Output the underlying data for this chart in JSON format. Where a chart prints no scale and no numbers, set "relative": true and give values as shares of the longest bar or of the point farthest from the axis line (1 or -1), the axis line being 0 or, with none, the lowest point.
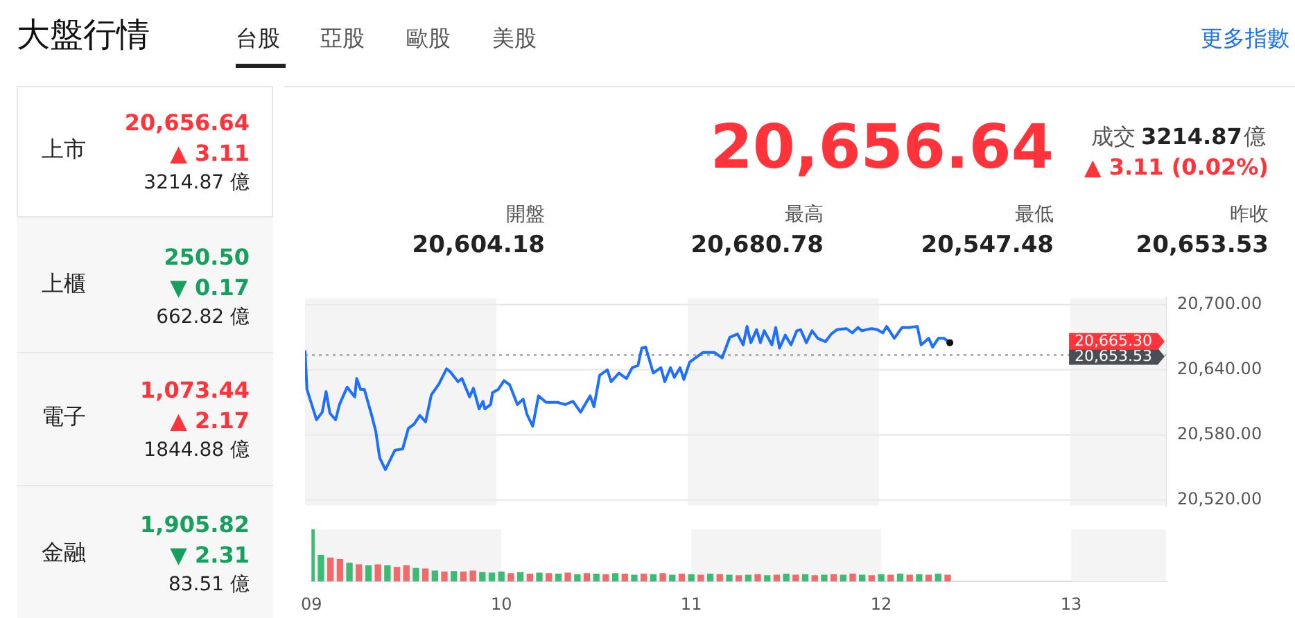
{
  "chart_data": [
    {
      "type": "other",
      "title": "大盤行情",
      "annotations": [
        "台股",
        "亞股",
        "歐股",
        "美股",
        "更多指數",
        "上市",
        "20,656.64",
        "▲ 3.11",
        "3214.87 億",
        "上櫃",
        "250.50",
        "▼ 0.17",
        "662.82 億",
        "電子",
        "1,073.44",
        "▲ 2.17",
        "1844.88 億",
        "金融",
        "1,905.82",
        "▼ 2.31",
        "83.51 億",
        "20,656.64",
        "成交",
        "3214.87",
        "億",
        "▲ 3.11 (0.02%)",
        "開盤",
        "20,604.18",
        "最高",
        "20,680.78",
        "最低",
        "20,547.48",
        "昨收",
        "20,653.53"
      ]
    },
    {
      "type": "line",
      "xlim": [
        9,
        13.5
      ],
      "ylim": [
        20515,
        20706
      ],
      "yticks": [
        {
          "value": 20520,
          "label": "20,520.00"
        },
        {
          "value": 20580,
          "label": "20,580.00"
        },
        {
          "value": 20640,
          "label": "20,640.00"
        },
        {
          "value": 20700,
          "label": "20,700.00"
        }
      ],
      "grid": "y",
      "tick_labels": "y",
      "marker": "none",
      "x": [
        9.0,
        9.01,
        9.06,
        9.09,
        9.11,
        9.13,
        9.16,
        9.18,
        9.22,
        9.26,
        9.27,
        9.29,
        9.31,
        9.35,
        9.37,
        9.39,
        9.42,
        9.47,
        9.51,
        9.54,
        9.57,
        9.6,
        9.63,
        9.66,
        9.7,
        9.74,
        9.76,
        9.8,
        9.82,
        9.86,
        9.88,
        9.91,
        9.93,
        9.94,
        9.97,
        9.98,
        10.01,
        10.04,
        10.07,
        10.11,
        10.14,
        10.16,
        10.19,
        10.22,
        10.26,
        10.32,
        10.36,
        10.4,
        10.44,
        10.49,
        10.51,
        10.54,
        10.58,
        10.6,
        10.64,
        10.68,
        10.71,
        10.74,
        10.76,
        10.78,
        10.82,
        10.86,
        10.88,
        10.91,
        10.93,
        10.96,
        10.98,
        11.01,
        11.04,
        11.08,
        11.14,
        11.18,
        11.22,
        11.26,
        11.29,
        11.31,
        11.33,
        11.36,
        11.38,
        11.4,
        11.44,
        11.46,
        11.48,
        11.51,
        11.54,
        11.57,
        11.59,
        11.62,
        11.65,
        11.68,
        11.72,
        11.75,
        11.78,
        11.83,
        11.86,
        11.89,
        11.91,
        11.96,
        11.99,
        12.02,
        12.04,
        12.08,
        12.12,
        12.16,
        12.2,
        12.22,
        12.26,
        12.28,
        12.31,
        12.34,
        12.37
      ],
      "series": [
        {
          "color": "#1f6fff",
          "values": [
            20658,
            20622,
            20594,
            20601,
            20620,
            20600,
            20594,
            20608,
            20624,
            20615,
            20632,
            20622,
            20622,
            20597,
            20583,
            20559,
            20548,
            20566,
            20567,
            20586,
            20590,
            20598,
            20592,
            20617,
            20627,
            20641,
            20638,
            20629,
            20632,
            20615,
            20623,
            20604,
            20611,
            20604,
            20608,
            20619,
            20622,
            20630,
            20626,
            20608,
            20613,
            20599,
            20588,
            20616,
            20610,
            20610,
            20608,
            20611,
            20601,
            20616,
            20606,
            20635,
            20640,
            20629,
            20637,
            20632,
            20642,
            20644,
            20660,
            20661,
            20637,
            20642,
            20629,
            20642,
            20633,
            20642,
            20631,
            20647,
            20651,
            20656,
            20656,
            20651,
            20670,
            20673,
            20663,
            20680,
            20665,
            20677,
            20665,
            20676,
            20663,
            20679,
            20660,
            20672,
            20663,
            20676,
            20677,
            20665,
            20676,
            20669,
            20666,
            20673,
            20677,
            20678,
            20674,
            20679,
            20676,
            20678,
            20677,
            20674,
            20680,
            20669,
            20679,
            20679,
            20680,
            20663,
            20669,
            20661,
            20669,
            20669,
            20665
          ]
        }
      ],
      "ref_lines": [
        {
          "axis": "y",
          "value": 20653.53,
          "label": "20,653.53",
          "color": "#b0b0b0",
          "line_style": "dotted"
        }
      ],
      "bands": [
        {
          "axis": "x",
          "from": 9,
          "to": 10,
          "color": "#f4f4f4"
        },
        {
          "axis": "x",
          "from": 11,
          "to": 12,
          "color": "#f4f4f4"
        },
        {
          "axis": "x",
          "from": 13,
          "to": 13.5,
          "color": "#f4f4f4"
        }
      ],
      "annotations": [
        "20,665.30"
      ]
    },
    {
      "type": "bar",
      "relative": true,
      "xlim": [
        9,
        13.5
      ],
      "xticks": [
        {
          "value": 9,
          "label": "09"
        },
        10,
        11,
        12,
        13
      ],
      "tick_labels": "x",
      "x": [
        9,
        9.05,
        9.1,
        9.15,
        9.2,
        9.25,
        9.3,
        9.35,
        9.4,
        9.45,
        9.5,
        9.55,
        9.6,
        9.65,
        9.7,
        9.75,
        9.8,
        9.85,
        9.9,
        9.95,
        10,
        10.05,
        10.1,
        10.15,
        10.2,
        10.25,
        10.3,
        10.35,
        10.4,
        10.45,
        10.5,
        10.55,
        10.6,
        10.65,
        10.7,
        10.75,
        10.8,
        10.85,
        10.9,
        10.95,
        11,
        11.05,
        11.1,
        11.15,
        11.2,
        11.25,
        11.3,
        11.35,
        11.4,
        11.45,
        11.5,
        11.55,
        11.6,
        11.65,
        11.7,
        11.75,
        11.8,
        11.85,
        11.9,
        11.95,
        12,
        12.05,
        12.1,
        12.15,
        12.2,
        12.25,
        12.3,
        12.35
      ],
      "values": [
        1,
        0.5,
        0.45,
        0.42,
        0.35,
        0.32,
        0.3,
        0.32,
        0.3,
        0.27,
        0.3,
        0.25,
        0.24,
        0.2,
        0.18,
        0.19,
        0.18,
        0.2,
        0.17,
        0.16,
        0.18,
        0.15,
        0.17,
        0.14,
        0.16,
        0.15,
        0.14,
        0.16,
        0.13,
        0.15,
        0.14,
        0.13,
        0.15,
        0.14,
        0.12,
        0.14,
        0.13,
        0.15,
        0.12,
        0.14,
        0.13,
        0.12,
        0.14,
        0.13,
        0.12,
        0.11,
        0.12,
        0.13,
        0.11,
        0.12,
        0.14,
        0.12,
        0.13,
        0.11,
        0.12,
        0.13,
        0.12,
        0.14,
        0.12,
        0.11,
        0.13,
        0.12,
        0.14,
        0.12,
        0.13,
        0.12,
        0.14,
        0.12
      ],
      "colors": [
        "#3dbb74",
        "#3dbb74",
        "#f06a6a",
        "#f06a6a",
        "#3dbb74",
        "#f06a6a",
        "#3dbb74",
        "#f06a6a",
        "#3dbb74",
        "#f06a6a",
        "#f06a6a",
        "#3dbb74",
        "#f06a6a",
        "#3dbb74",
        "#f06a6a",
        "#3dbb74",
        "#f06a6a",
        "#f06a6a",
        "#3dbb74",
        "#3dbb74",
        "#3dbb74",
        "#f06a6a",
        "#3dbb74",
        "#f06a6a",
        "#3dbb74",
        "#f06a6a",
        "#3dbb74",
        "#f06a6a",
        "#3dbb74",
        "#f06a6a",
        "#3dbb74",
        "#f06a6a",
        "#3dbb74",
        "#f06a6a",
        "#3dbb74",
        "#f06a6a",
        "#3dbb74",
        "#f06a6a",
        "#3dbb74",
        "#f06a6a",
        "#3dbb74",
        "#f06a6a",
        "#3dbb74",
        "#f06a6a",
        "#3dbb74",
        "#f06a6a",
        "#3dbb74",
        "#f06a6a",
        "#3dbb74",
        "#f06a6a",
        "#3dbb74",
        "#f06a6a",
        "#3dbb74",
        "#f06a6a",
        "#3dbb74",
        "#f06a6a",
        "#3dbb74",
        "#f06a6a",
        "#3dbb74",
        "#f06a6a",
        "#3dbb74",
        "#f06a6a",
        "#3dbb74",
        "#f06a6a",
        "#3dbb74",
        "#f06a6a",
        "#3dbb74",
        "#f06a6a"
      ],
      "bands": [
        {
          "axis": "x",
          "from": 9,
          "to": 10,
          "color": "#f4f4f4"
        },
        {
          "axis": "x",
          "from": 11,
          "to": 12,
          "color": "#f4f4f4"
        },
        {
          "axis": "x",
          "from": 13,
          "to": 13.5,
          "color": "#f4f4f4"
        }
      ]
    }
  ]
}
